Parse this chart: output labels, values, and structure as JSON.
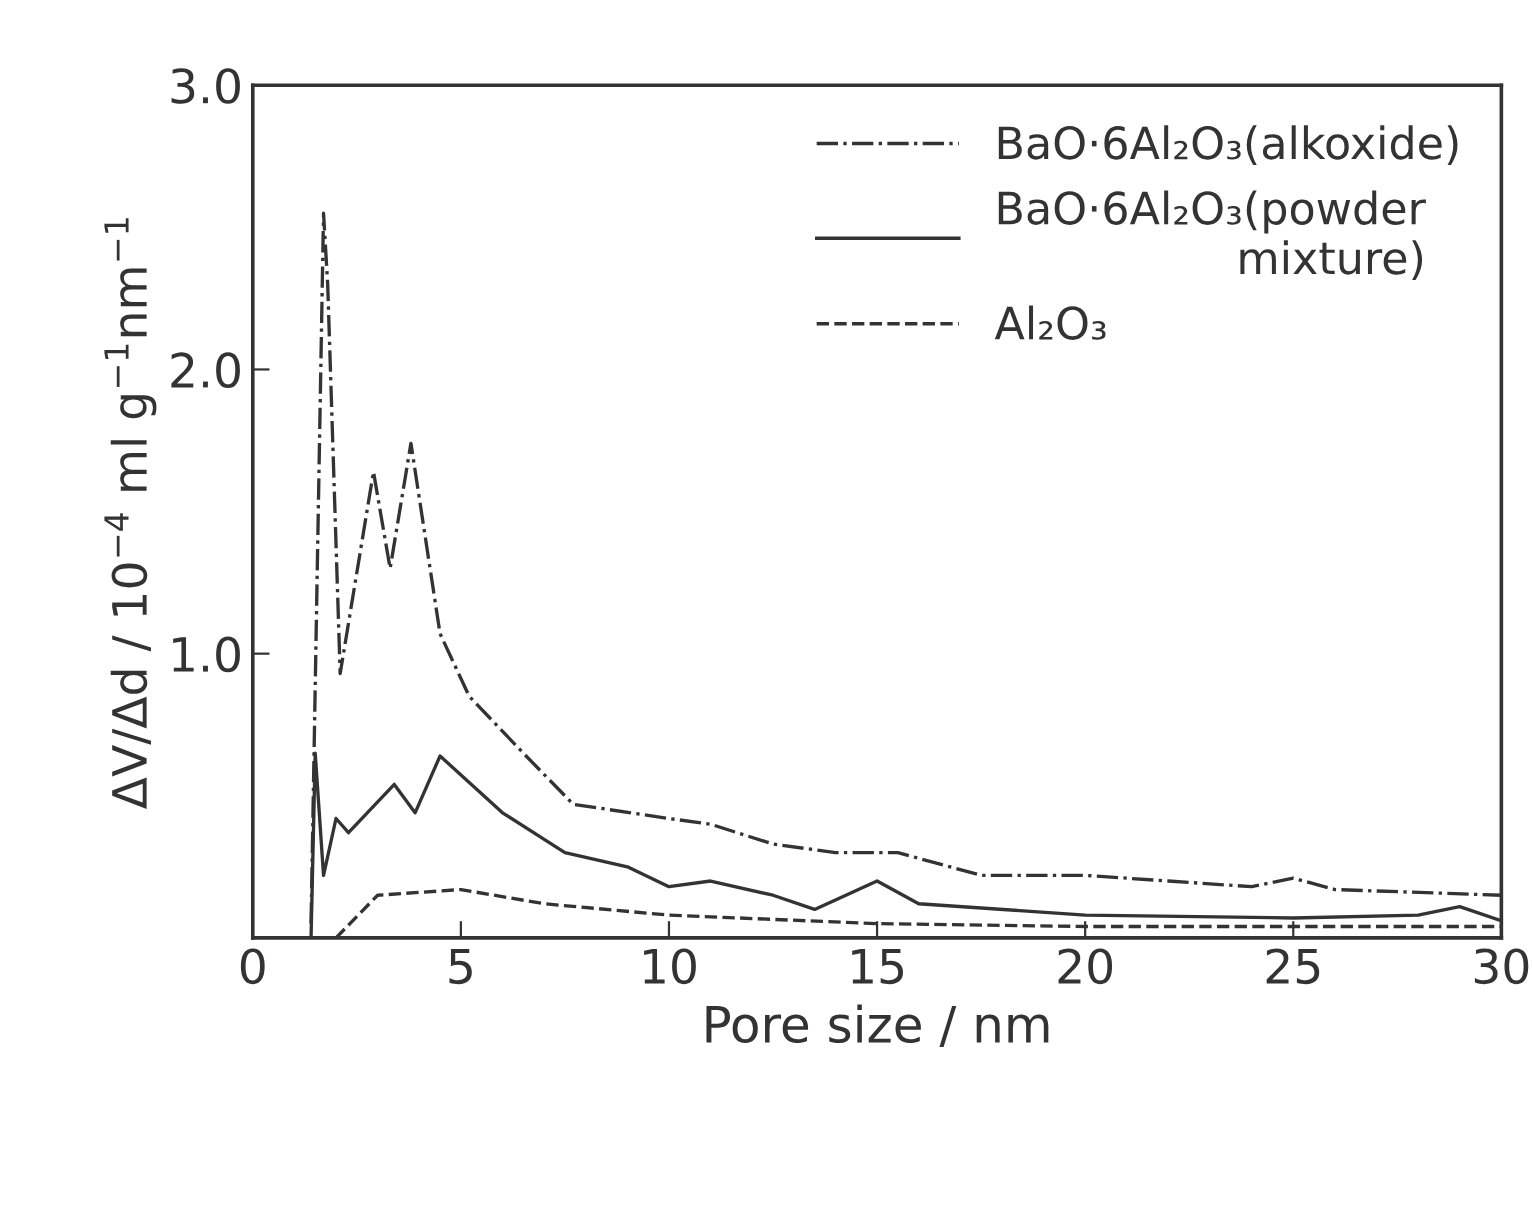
{
  "chart_data": {
    "type": "line",
    "xlabel": "Pore size / nm",
    "ylabel": "ΔV/Δd / 10$^{−4}$ ml g$^{−1}$nm$^{−1}$",
    "xlim": [
      0,
      30
    ],
    "ylim": [
      0,
      3
    ],
    "xticks": [
      0,
      5,
      10,
      15,
      20,
      25,
      30
    ],
    "yticks": [
      {
        "value": 1,
        "label": "1.0"
      },
      {
        "value": 2,
        "label": "2.0"
      },
      {
        "value": 3,
        "label": "3.0"
      }
    ],
    "grid": false,
    "legend": "top right",
    "marker": "none",
    "series": [
      {
        "name": "BaO·6Al₂O₃(alkoxide)",
        "color": "#333333",
        "line_style": "dashdot",
        "x": [
          1.4,
          1.7,
          1.8,
          2.1,
          2.9,
          3.3,
          3.8,
          4.5,
          5.2,
          6.5,
          7.7,
          10,
          11,
          12.5,
          14,
          15.5,
          17.5,
          20,
          22,
          24,
          25,
          26,
          30
        ],
        "values": [
          0.05,
          2.55,
          2.3,
          0.93,
          1.64,
          1.3,
          1.74,
          1.07,
          0.85,
          0.65,
          0.47,
          0.42,
          0.4,
          0.33,
          0.3,
          0.3,
          0.22,
          0.22,
          0.2,
          0.18,
          0.21,
          0.17,
          0.15
        ]
      },
      {
        "name": "BaO·6Al₂O₃(powder\nmixture)",
        "color": "#333333",
        "line_style": "solid",
        "x": [
          1.4,
          1.5,
          1.7,
          2.0,
          2.3,
          3.4,
          3.9,
          4.5,
          6,
          7.5,
          9,
          10,
          11,
          12.5,
          13.5,
          15,
          16,
          20,
          25,
          28,
          29,
          30
        ],
        "values": [
          0.0,
          0.65,
          0.22,
          0.42,
          0.37,
          0.54,
          0.44,
          0.64,
          0.44,
          0.3,
          0.25,
          0.18,
          0.2,
          0.15,
          0.1,
          0.2,
          0.12,
          0.08,
          0.07,
          0.08,
          0.11,
          0.06
        ]
      },
      {
        "name": "Al₂O₃",
        "color": "#333333",
        "line_style": "dashed",
        "x": [
          2.0,
          3.0,
          5.0,
          7.0,
          10,
          15,
          20,
          30
        ],
        "values": [
          0.0,
          0.15,
          0.17,
          0.12,
          0.08,
          0.05,
          0.04,
          0.04
        ]
      }
    ]
  }
}
